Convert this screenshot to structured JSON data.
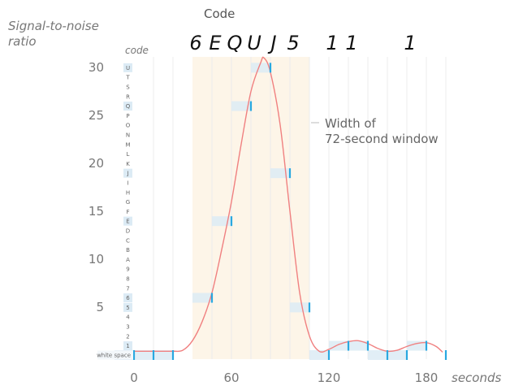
{
  "chart_data": {
    "type": "line",
    "title": "Code",
    "xlabel": "seconds",
    "ylabel": "Signal-to-noise ratio",
    "xlim": [
      0,
      190
    ],
    "ylim": [
      0,
      31
    ],
    "x_ticks": [
      0,
      60,
      120,
      180
    ],
    "y_ticks": [
      5,
      10,
      15,
      20,
      25,
      30
    ],
    "code_axis_label": "code",
    "code_levels": [
      "white space",
      "1",
      "2",
      "3",
      "4",
      "5",
      "6",
      "7",
      "8",
      "9",
      "A",
      "B",
      "C",
      "D",
      "E",
      "F",
      "G",
      "H",
      "I",
      "J",
      "K",
      "L",
      "M",
      "N",
      "O",
      "P",
      "Q",
      "R",
      "S",
      "T",
      "U"
    ],
    "decoded_text": [
      "6",
      "E",
      "Q",
      "U",
      "J",
      "5",
      "1",
      "1",
      "1"
    ],
    "window_start": 36,
    "window_end": 108,
    "annotation": [
      "Width of",
      "72-second window"
    ],
    "curve": {
      "x": [
        0,
        6,
        12,
        18,
        24,
        30,
        36,
        42,
        48,
        54,
        60,
        66,
        72,
        78,
        80,
        84,
        90,
        96,
        102,
        108,
        114,
        120,
        126,
        132,
        138,
        144,
        150,
        156,
        162,
        168,
        174,
        180,
        186,
        190
      ],
      "y": [
        0.4,
        0.4,
        0.4,
        0.4,
        0.4,
        0.5,
        1.5,
        3.5,
        6.5,
        11,
        16,
        22,
        27.5,
        30.5,
        31,
        29.5,
        24,
        15,
        6.5,
        2,
        0.4,
        0.6,
        1.1,
        1.4,
        1.5,
        1.2,
        0.7,
        0.4,
        0.5,
        0.9,
        1.2,
        1.3,
        0.9,
        0.3
      ]
    },
    "samples": [
      {
        "x": 0,
        "y": 0.4,
        "code": "white space"
      },
      {
        "x": 12,
        "y": 0.4,
        "code": "white space"
      },
      {
        "x": 24,
        "y": 0.4,
        "code": "white space"
      },
      {
        "x": 48,
        "y": 6,
        "code": "6"
      },
      {
        "x": 60,
        "y": 14,
        "code": "E"
      },
      {
        "x": 72,
        "y": 26,
        "code": "Q"
      },
      {
        "x": 84,
        "y": 30,
        "code": "U"
      },
      {
        "x": 96,
        "y": 19,
        "code": "J"
      },
      {
        "x": 108,
        "y": 5,
        "code": "5"
      },
      {
        "x": 120,
        "y": 0.4,
        "code": "white space"
      },
      {
        "x": 132,
        "y": 1,
        "code": "1"
      },
      {
        "x": 144,
        "y": 1,
        "code": "1"
      },
      {
        "x": 156,
        "y": 0.4,
        "code": "white space"
      },
      {
        "x": 168,
        "y": 0.4,
        "code": "white space"
      },
      {
        "x": 180,
        "y": 1,
        "code": "1"
      },
      {
        "x": 192,
        "y": 0.4,
        "code": "white space"
      }
    ],
    "colors": {
      "curve": "#f08080",
      "sample": "#29a8e0",
      "sample_box": "#dcebf5",
      "window": "#fdf5e8",
      "grid": "#ececec"
    }
  }
}
